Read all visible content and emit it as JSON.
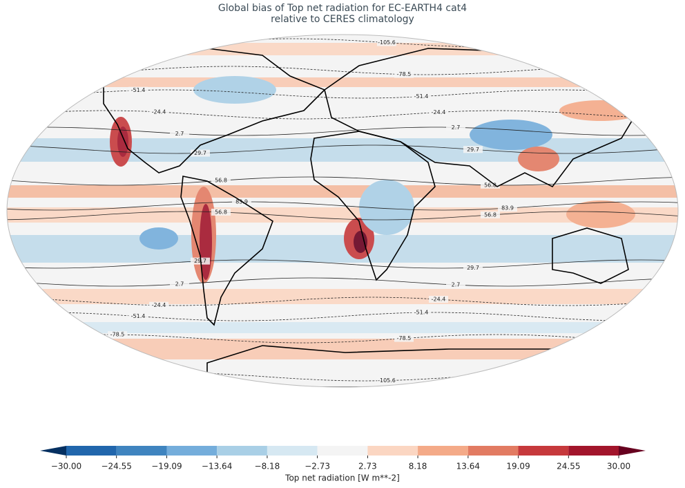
{
  "chart_data": {
    "type": "map",
    "title": "Global bias of Top net radiation for EC-EARTH4 cat4",
    "subtitle": "relative to CERES climatology",
    "contour_levels": [
      -105.6,
      -78.5,
      -51.4,
      -24.4,
      2.7,
      29.7,
      56.8,
      83.9
    ],
    "colorbar": {
      "label": "Top net radiation [W m**-2]",
      "lim": [
        -30,
        30
      ],
      "ticks": [
        {
          "value": -30,
          "label": "−30.00"
        },
        {
          "value": -24.55,
          "label": "−24.55"
        },
        {
          "value": -19.09,
          "label": "−19.09"
        },
        {
          "value": -13.64,
          "label": "−13.64"
        },
        {
          "value": -8.18,
          "label": "−8.18"
        },
        {
          "value": -2.73,
          "label": "−2.73"
        },
        {
          "value": 2.73,
          "label": "2.73"
        },
        {
          "value": 8.18,
          "label": "8.18"
        },
        {
          "value": 13.64,
          "label": "13.64"
        },
        {
          "value": 19.09,
          "label": "19.09"
        },
        {
          "value": 24.55,
          "label": "24.55"
        },
        {
          "value": 30,
          "label": "30.00"
        }
      ],
      "colors": [
        "#053061",
        "#2166ac",
        "#3f84bf",
        "#74addb",
        "#a9cfe6",
        "#d6e8f2",
        "#f4f4f4",
        "#fbd6c2",
        "#f4aa88",
        "#e27b62",
        "#c6393c",
        "#a2152b",
        "#67001f"
      ]
    }
  }
}
